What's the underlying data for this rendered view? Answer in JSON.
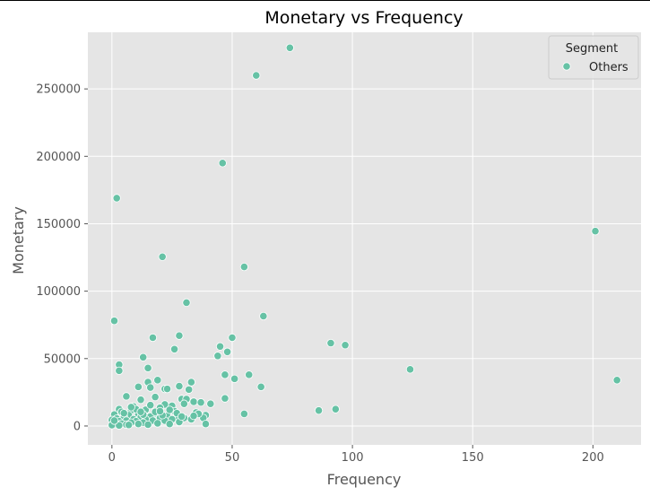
{
  "chart_data": {
    "type": "scatter",
    "title": "Monetary vs Frequency",
    "xlabel": "Frequency",
    "ylabel": "Monetary",
    "xlim": [
      -10,
      220
    ],
    "ylim": [
      -14000,
      292000
    ],
    "xticks": [
      0,
      50,
      100,
      150,
      200
    ],
    "yticks": [
      0,
      50000,
      100000,
      150000,
      200000,
      250000
    ],
    "grid": true,
    "legend": {
      "title": "Segment",
      "placement": "top-right"
    },
    "series": [
      {
        "name": "Others",
        "color": "#66c2a5",
        "points": [
          [
            74,
            280500
          ],
          [
            60,
            260000
          ],
          [
            46,
            195000
          ],
          [
            2,
            169000
          ],
          [
            201,
            144500
          ],
          [
            21,
            125500
          ],
          [
            55,
            118000
          ],
          [
            31,
            91500
          ],
          [
            63,
            81500
          ],
          [
            1,
            78000
          ],
          [
            28,
            67000
          ],
          [
            17,
            65500
          ],
          [
            50,
            65500
          ],
          [
            91,
            61500
          ],
          [
            97,
            60000
          ],
          [
            45,
            59000
          ],
          [
            26,
            57000
          ],
          [
            48,
            55000
          ],
          [
            44,
            52000
          ],
          [
            13,
            51000
          ],
          [
            3,
            45500
          ],
          [
            15,
            43000
          ],
          [
            124,
            42000
          ],
          [
            3,
            41000
          ],
          [
            47,
            38000
          ],
          [
            57,
            38000
          ],
          [
            51,
            35000
          ],
          [
            210,
            34000
          ],
          [
            19,
            34000
          ],
          [
            33,
            32500
          ],
          [
            15,
            32500
          ],
          [
            62,
            29000
          ],
          [
            28,
            29500
          ],
          [
            11,
            29000
          ],
          [
            16,
            28500
          ],
          [
            22,
            27500
          ],
          [
            23,
            27500
          ],
          [
            32,
            27000
          ],
          [
            6,
            22000
          ],
          [
            18,
            21500
          ],
          [
            47,
            20500
          ],
          [
            29,
            20000
          ],
          [
            31,
            20000
          ],
          [
            12,
            19500
          ],
          [
            34,
            18000
          ],
          [
            37,
            17500
          ],
          [
            41,
            16500
          ],
          [
            22,
            16000
          ],
          [
            30,
            16500
          ],
          [
            25,
            15000
          ],
          [
            9,
            14500
          ],
          [
            20,
            13500
          ],
          [
            3,
            12500
          ],
          [
            93,
            12500
          ],
          [
            86,
            11500
          ],
          [
            14,
            12000
          ],
          [
            8,
            11500
          ],
          [
            26,
            11000
          ],
          [
            4,
            10500
          ],
          [
            35,
            10000
          ],
          [
            55,
            9000
          ],
          [
            18,
            9500
          ],
          [
            11,
            9000
          ],
          [
            1,
            8500
          ],
          [
            39,
            8000
          ],
          [
            7,
            8000
          ],
          [
            23,
            7500
          ],
          [
            16,
            7000
          ],
          [
            27,
            7000
          ],
          [
            5,
            6500
          ],
          [
            12,
            6500
          ],
          [
            20,
            6000
          ],
          [
            30,
            6000
          ],
          [
            38,
            6000
          ],
          [
            2,
            5500
          ],
          [
            9,
            5000
          ],
          [
            14,
            5000
          ],
          [
            25,
            5000
          ],
          [
            33,
            5000
          ],
          [
            0,
            4500
          ],
          [
            6,
            4000
          ],
          [
            17,
            4000
          ],
          [
            22,
            4000
          ],
          [
            3,
            3500
          ],
          [
            10,
            3500
          ],
          [
            28,
            3000
          ],
          [
            1,
            2500
          ],
          [
            8,
            2500
          ],
          [
            13,
            2500
          ],
          [
            19,
            2000
          ],
          [
            4,
            1800
          ],
          [
            11,
            1500
          ],
          [
            2,
            1200
          ],
          [
            6,
            1000
          ],
          [
            15,
            1000
          ],
          [
            24,
            1500
          ],
          [
            39,
            1500
          ],
          [
            0,
            700
          ],
          [
            3,
            400
          ],
          [
            7,
            800
          ],
          [
            5,
            9500
          ],
          [
            10,
            12500
          ],
          [
            18,
            10500
          ],
          [
            24,
            12000
          ],
          [
            27,
            9500
          ],
          [
            36,
            9000
          ],
          [
            13,
            8500
          ],
          [
            21,
            8000
          ],
          [
            1,
            4000
          ],
          [
            16,
            15500
          ],
          [
            20,
            11000
          ],
          [
            29,
            7000
          ],
          [
            34,
            7500
          ],
          [
            8,
            14000
          ],
          [
            12,
            10500
          ]
        ]
      }
    ]
  }
}
